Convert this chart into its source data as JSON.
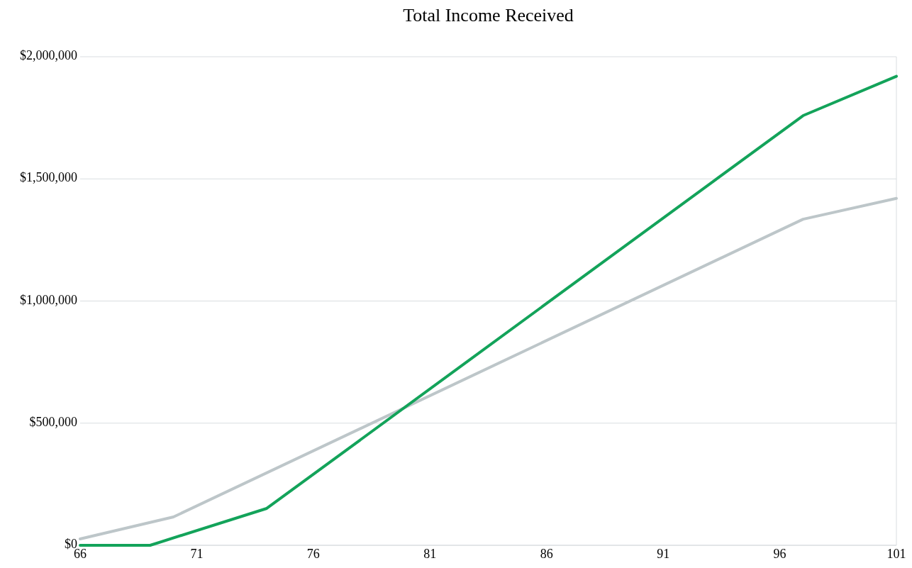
{
  "chart_data": {
    "type": "line",
    "title": "Total Income Received",
    "series": [
      {
        "color": "#bdc6c9",
        "x": [
          66,
          70,
          97,
          101
        ],
        "values": [
          26000,
          116000,
          1335000,
          1420000
        ]
      },
      {
        "color": "#13a35a",
        "x": [
          66,
          69,
          74,
          97,
          101
        ],
        "values": [
          0,
          0,
          151000,
          1759000,
          1920000
        ]
      }
    ],
    "xlim": [
      66,
      101
    ],
    "xticks": [
      66,
      71,
      76,
      81,
      86,
      91,
      96,
      101
    ],
    "ylim": [
      0,
      2000000
    ],
    "yticks": [
      {
        "value": 0,
        "label": "$0"
      },
      {
        "value": 500000,
        "label": "$500,000"
      },
      {
        "value": 1000000,
        "label": "$1,000,000"
      },
      {
        "value": 1500000,
        "label": "$1,500,000"
      },
      {
        "value": 2000000,
        "label": "$2,000,000"
      }
    ],
    "grid": "y",
    "marker": "none",
    "line_style": "solid"
  }
}
